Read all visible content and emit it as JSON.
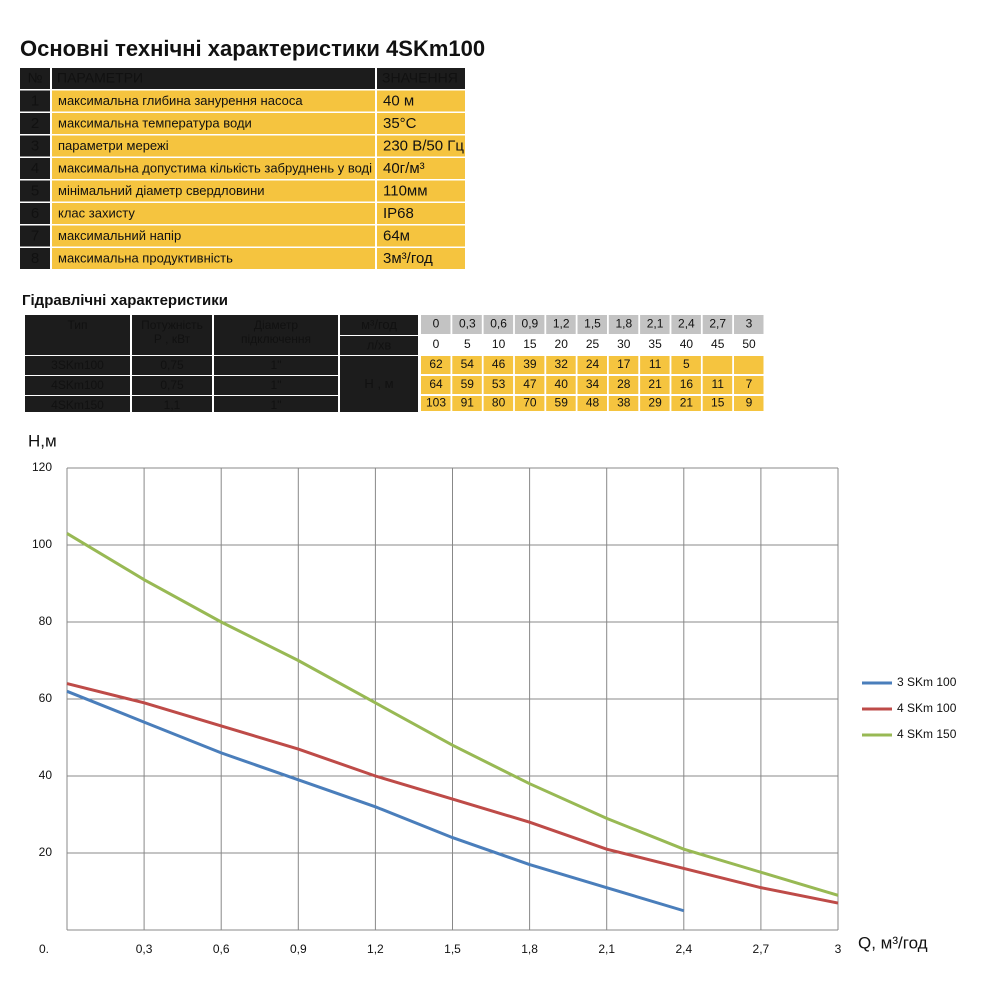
{
  "title": "Основні технічні характеристики 4SKm100",
  "spec_table": {
    "headers": [
      "№",
      "ПАРАМЕТРИ",
      "ЗНАЧЕННЯ"
    ],
    "rows": [
      [
        "1",
        "максимальна глибина занурення насоса",
        "40 м"
      ],
      [
        "2",
        "максимальна температура води",
        "35°С"
      ],
      [
        "3",
        "параметри мережі",
        "230 В/50 Гц"
      ],
      [
        "4",
        "максимальна допустима кількість забруднень у воді",
        "40г/м³"
      ],
      [
        "5",
        "мінімальний діаметр свердловини",
        "110мм"
      ],
      [
        "6",
        "клас захисту",
        "IP68"
      ],
      [
        "7",
        "максимальний напір",
        "64м"
      ],
      [
        "8",
        "максимальна продуктивність",
        "3м³/год"
      ]
    ]
  },
  "hydraulic_table": {
    "title": "Гідравлічні характеристики",
    "headers": [
      [
        "Тип"
      ],
      [
        "Потужність",
        "Р , кВт"
      ],
      [
        "Діаметр",
        "підключення"
      ]
    ],
    "unit_flow_m3": "м³/год",
    "unit_flow_l": "л/хв",
    "unit_head": "Н , м",
    "flow_m3": [
      "0",
      "0,3",
      "0,6",
      "0,9",
      "1,2",
      "1,5",
      "1,8",
      "2,1",
      "2,4",
      "2,7",
      "3"
    ],
    "flow_l": [
      "0",
      "5",
      "10",
      "15",
      "20",
      "25",
      "30",
      "35",
      "40",
      "45",
      "50"
    ],
    "rows": [
      {
        "type": "3SKm100",
        "power": "0,75",
        "diameter": "1\"",
        "head": [
          62,
          54,
          46,
          39,
          32,
          24,
          17,
          11,
          5,
          null,
          null
        ]
      },
      {
        "type": "4SKm100",
        "power": "0,75",
        "diameter": "1\"",
        "head": [
          64,
          59,
          53,
          47,
          40,
          34,
          28,
          21,
          16,
          11,
          7
        ]
      },
      {
        "type": "4SKm150",
        "power": "1,1",
        "diameter": "1\"",
        "head": [
          103,
          91,
          80,
          70,
          59,
          48,
          38,
          29,
          21,
          15,
          9
        ]
      }
    ]
  },
  "chart_data": {
    "type": "line",
    "y_label": "Н,м",
    "x_label": "Q,  м³/год",
    "x": [
      0,
      0.3,
      0.6,
      0.9,
      1.2,
      1.5,
      1.8,
      2.1,
      2.4,
      2.7,
      3
    ],
    "series": [
      {
        "name": "3 SKm 100",
        "color": "#4a7ebb",
        "values": [
          62,
          54,
          46,
          39,
          32,
          24,
          17,
          11,
          5,
          null,
          null
        ]
      },
      {
        "name": "4 SKm 100",
        "color": "#be4b48",
        "values": [
          64,
          59,
          53,
          47,
          40,
          34,
          28,
          21,
          16,
          11,
          7
        ]
      },
      {
        "name": "4 SKm 150",
        "color": "#98b954",
        "values": [
          103,
          91,
          80,
          70,
          59,
          48,
          38,
          29,
          21,
          15,
          9
        ]
      }
    ],
    "xlim": [
      0,
      3
    ],
    "ylim": [
      0,
      120
    ],
    "xticks": [
      {
        "value": 0,
        "label": "0."
      },
      {
        "value": 0.3,
        "label": "0,3"
      },
      {
        "value": 0.6,
        "label": "0,6"
      },
      {
        "value": 0.9,
        "label": "0,9"
      },
      {
        "value": 1.2,
        "label": "1,2"
      },
      {
        "value": 1.5,
        "label": "1,5"
      },
      {
        "value": 1.8,
        "label": "1,8"
      },
      {
        "value": 2.1,
        "label": "2,1"
      },
      {
        "value": 2.4,
        "label": "2,4"
      },
      {
        "value": 2.7,
        "label": "2,7"
      },
      {
        "value": 3,
        "label": "3"
      }
    ],
    "yticks": [
      20,
      40,
      60,
      80,
      100,
      120
    ],
    "grid": true,
    "legend": "right"
  }
}
